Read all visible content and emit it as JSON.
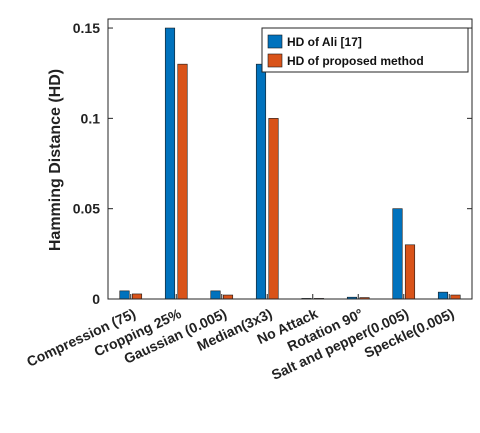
{
  "chart_data": {
    "type": "bar",
    "categories": [
      "Compression (75)",
      "Cropping 25%",
      "Gaussian (0.005)",
      "Median(3x3)",
      "No Attack",
      "Rotation 90°",
      "Salt and pepper(0.005)",
      "Speckle(0.005)"
    ],
    "series": [
      {
        "name": "HD of Ali [17]",
        "color": "#0072BD",
        "values": [
          0.0045,
          0.15,
          0.0045,
          0.13,
          0.0,
          0.001,
          0.05,
          0.0038
        ]
      },
      {
        "name": "HD of proposed method",
        "color": "#D95319",
        "values": [
          0.0028,
          0.13,
          0.0022,
          0.1,
          0.0,
          0.0008,
          0.03,
          0.0022
        ]
      }
    ],
    "ylabel": "Hamming Distance (HD)",
    "ylim": [
      0,
      0.155
    ],
    "yticks": [
      {
        "value": 0,
        "label": "0"
      },
      {
        "value": 0.05,
        "label": "0.05"
      },
      {
        "value": 0.1,
        "label": "0.1"
      },
      {
        "value": 0.15,
        "label": "0.15"
      }
    ],
    "legend_position": "top-right",
    "grid": false
  }
}
